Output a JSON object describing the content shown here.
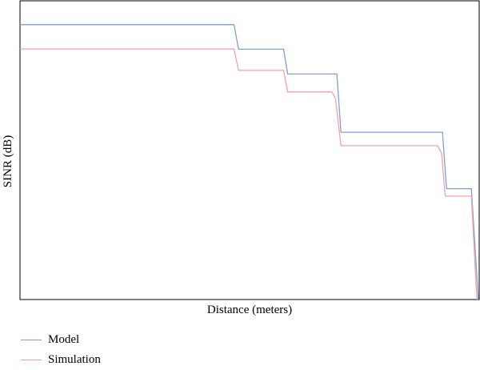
{
  "chart_data": {
    "type": "line",
    "title": "",
    "xlabel": "Distance (meters)",
    "ylabel": "SINR (dB)",
    "x_ticks": false,
    "y_ticks": false,
    "grid": false,
    "legend_position": "bottom-left",
    "xlim": [
      0,
      100
    ],
    "ylim": [
      0,
      100
    ],
    "series": [
      {
        "name": "Model",
        "color": "#7f9fd6",
        "x": [
          0,
          46.6,
          47.6,
          57.4,
          58.3,
          69.0,
          69.9,
          92.0,
          92.9,
          98.3,
          99.8
        ],
        "y": [
          92.0,
          92.0,
          83.8,
          83.8,
          75.5,
          75.5,
          56.0,
          56.0,
          37.1,
          37.1,
          0
        ]
      },
      {
        "name": "Simulation",
        "color": "#f4a0a8",
        "x": [
          0,
          46.6,
          47.6,
          57.4,
          58.3,
          67.9,
          68.7,
          69.9,
          90.9,
          91.8,
          92.6,
          98.3,
          99.5
        ],
        "y": [
          83.9,
          83.9,
          76.7,
          76.7,
          69.5,
          69.5,
          67.4,
          51.5,
          51.5,
          49.1,
          34.6,
          34.6,
          0
        ]
      }
    ]
  }
}
